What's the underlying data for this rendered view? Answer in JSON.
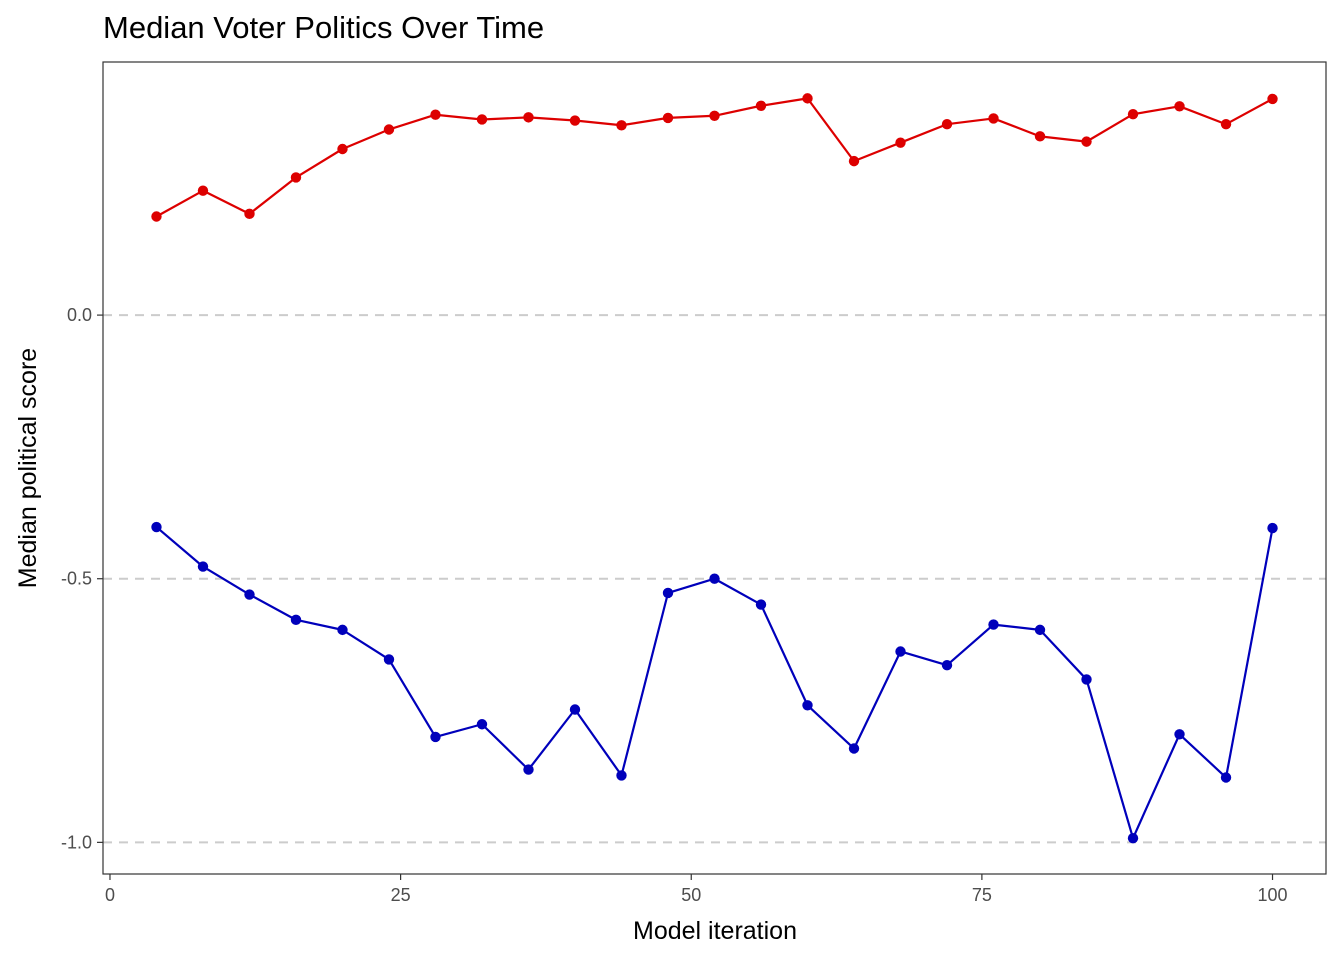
{
  "chart_data": {
    "type": "line",
    "title": "Median Voter Politics Over Time",
    "xlabel": "Model iteration",
    "ylabel": "Median political score",
    "xlim": [
      -0.6,
      104.6
    ],
    "ylim": [
      -1.06,
      0.48
    ],
    "x_ticks": [
      0,
      25,
      50,
      75,
      100
    ],
    "x_tick_labels": [
      "0",
      "25",
      "50",
      "75",
      "100"
    ],
    "y_ticks": [
      0.0,
      -0.5,
      -1.0
    ],
    "y_tick_labels": [
      "0.0",
      "-0.5",
      "-1.0"
    ],
    "grid": "dashed horizontal lines at y tick values",
    "legend": "none",
    "x": [
      4,
      8,
      12,
      16,
      20,
      24,
      28,
      32,
      36,
      40,
      44,
      48,
      52,
      56,
      60,
      64,
      68,
      72,
      76,
      80,
      84,
      88,
      92,
      96,
      100
    ],
    "series": [
      {
        "color": "#dd0000",
        "values": [
          0.187,
          0.236,
          0.192,
          0.261,
          0.315,
          0.352,
          0.38,
          0.371,
          0.375,
          0.369,
          0.36,
          0.374,
          0.378,
          0.397,
          0.411,
          0.292,
          0.327,
          0.362,
          0.373,
          0.339,
          0.329,
          0.381,
          0.396,
          0.362,
          0.41
        ]
      },
      {
        "color": "#0000bb",
        "values": [
          -0.402,
          -0.477,
          -0.53,
          -0.578,
          -0.597,
          -0.653,
          -0.8,
          -0.776,
          -0.862,
          -0.748,
          -0.873,
          -0.527,
          -0.5,
          -0.549,
          -0.74,
          -0.822,
          -0.638,
          -0.664,
          -0.587,
          -0.597,
          -0.691,
          -0.992,
          -0.795,
          -0.877,
          -0.404
        ]
      }
    ]
  }
}
